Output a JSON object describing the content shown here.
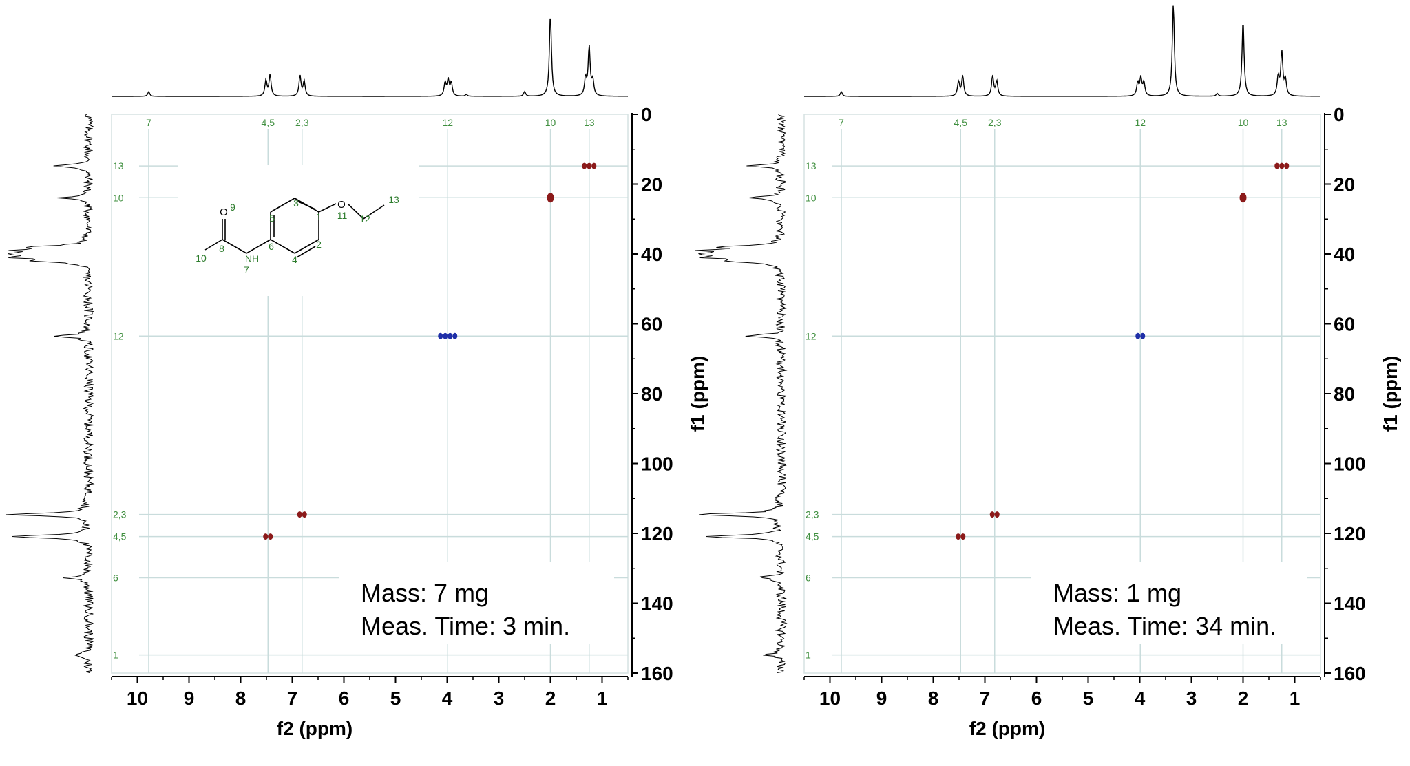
{
  "chart_data": [
    {
      "type": "scatter",
      "description_kind": "2D HSQC NMR spectrum",
      "xlabel": "f2 (ppm)",
      "ylabel": "f1 (ppm)",
      "xlim": [
        10.5,
        0.5
      ],
      "ylim": [
        0,
        160
      ],
      "x_ticks": [
        "10",
        "9",
        "8",
        "7",
        "6",
        "5",
        "4",
        "3",
        "2",
        "1"
      ],
      "y_ticks": [
        "0",
        "20",
        "40",
        "60",
        "80",
        "100",
        "120",
        "140",
        "160"
      ],
      "x_assignments": [
        {
          "label": "7",
          "x": 9.78
        },
        {
          "label": "4,5",
          "x": 7.47
        },
        {
          "label": "2,3",
          "x": 6.81
        },
        {
          "label": "12",
          "x": 3.99
        },
        {
          "label": "10",
          "x": 2.0
        },
        {
          "label": "13",
          "x": 1.25
        }
      ],
      "y_assignments": [
        {
          "label": "13",
          "y": 14.8
        },
        {
          "label": "10",
          "y": 23.9
        },
        {
          "label": "12",
          "y": 63.5
        },
        {
          "label": "2,3",
          "y": 114.6
        },
        {
          "label": "4,5",
          "y": 120.9
        },
        {
          "label": "6",
          "y": 132.7
        },
        {
          "label": "1",
          "y": 154.8
        }
      ],
      "cross_peaks": [
        {
          "x": 1.25,
          "y": 14.8,
          "phase": "positive",
          "count": 3
        },
        {
          "x": 2.0,
          "y": 23.9,
          "phase": "positive",
          "count": 1
        },
        {
          "x": 3.99,
          "y": 63.5,
          "phase": "negative",
          "count": 4
        },
        {
          "x": 6.81,
          "y": 114.6,
          "phase": "positive",
          "count": 2
        },
        {
          "x": 7.47,
          "y": 120.9,
          "phase": "positive",
          "count": 2
        }
      ],
      "proton_1d_peaks": [
        {
          "x": 9.78,
          "h": 0.05
        },
        {
          "x": 7.51,
          "h": 0.17
        },
        {
          "x": 7.43,
          "h": 0.23
        },
        {
          "x": 6.85,
          "h": 0.22
        },
        {
          "x": 6.77,
          "h": 0.16
        },
        {
          "x": 4.04,
          "h": 0.14
        },
        {
          "x": 3.98,
          "h": 0.17
        },
        {
          "x": 3.92,
          "h": 0.14
        },
        {
          "x": 3.63,
          "h": 0.02
        },
        {
          "x": 2.5,
          "h": 0.05
        },
        {
          "x": 2.0,
          "h": 0.9
        },
        {
          "x": 1.32,
          "h": 0.18
        },
        {
          "x": 1.25,
          "h": 0.53
        },
        {
          "x": 1.18,
          "h": 0.16
        }
      ],
      "carbon_1d_peaks": [
        {
          "y": 14.8,
          "h": 0.4
        },
        {
          "y": 23.9,
          "h": 0.34
        },
        {
          "y": 38.0,
          "h": 0.6
        },
        {
          "y": 39.0,
          "h": 0.72
        },
        {
          "y": 40.0,
          "h": 0.78
        },
        {
          "y": 41.0,
          "h": 0.7
        },
        {
          "y": 42.0,
          "h": 0.55
        },
        {
          "y": 63.5,
          "h": 0.4
        },
        {
          "y": 114.6,
          "h": 1.0
        },
        {
          "y": 120.9,
          "h": 0.95
        },
        {
          "y": 132.7,
          "h": 0.28
        },
        {
          "y": 154.8,
          "h": 0.2
        }
      ],
      "annotations": [
        "Mass: 7 mg",
        "Meas. Time: 3 min."
      ],
      "has_structure": true
    },
    {
      "type": "scatter",
      "description_kind": "2D HSQC NMR spectrum",
      "xlabel": "f2 (ppm)",
      "ylabel": "f1 (ppm)",
      "xlim": [
        10.5,
        0.5
      ],
      "ylim": [
        0,
        160
      ],
      "x_ticks": [
        "10",
        "9",
        "8",
        "7",
        "6",
        "5",
        "4",
        "3",
        "2",
        "1"
      ],
      "y_ticks": [
        "0",
        "20",
        "40",
        "60",
        "80",
        "100",
        "120",
        "140",
        "160"
      ],
      "x_assignments": [
        {
          "label": "7",
          "x": 9.78
        },
        {
          "label": "4,5",
          "x": 7.47
        },
        {
          "label": "2,3",
          "x": 6.81
        },
        {
          "label": "12",
          "x": 3.99
        },
        {
          "label": "10",
          "x": 2.0
        },
        {
          "label": "13",
          "x": 1.25
        }
      ],
      "y_assignments": [
        {
          "label": "13",
          "y": 14.8
        },
        {
          "label": "10",
          "y": 23.9
        },
        {
          "label": "12",
          "y": 63.5
        },
        {
          "label": "2,3",
          "y": 114.6
        },
        {
          "label": "4,5",
          "y": 120.9
        },
        {
          "label": "6",
          "y": 132.7
        },
        {
          "label": "1",
          "y": 154.8
        }
      ],
      "cross_peaks": [
        {
          "x": 1.25,
          "y": 14.8,
          "phase": "positive",
          "count": 3
        },
        {
          "x": 2.0,
          "y": 23.9,
          "phase": "positive",
          "count": 1
        },
        {
          "x": 3.99,
          "y": 63.5,
          "phase": "negative",
          "count": 2
        },
        {
          "x": 6.81,
          "y": 114.6,
          "phase": "positive",
          "count": 2
        },
        {
          "x": 7.47,
          "y": 120.9,
          "phase": "positive",
          "count": 2
        }
      ],
      "proton_1d_peaks": [
        {
          "x": 9.78,
          "h": 0.05
        },
        {
          "x": 7.51,
          "h": 0.16
        },
        {
          "x": 7.43,
          "h": 0.22
        },
        {
          "x": 6.85,
          "h": 0.22
        },
        {
          "x": 6.77,
          "h": 0.16
        },
        {
          "x": 4.04,
          "h": 0.14
        },
        {
          "x": 3.98,
          "h": 0.19
        },
        {
          "x": 3.92,
          "h": 0.14
        },
        {
          "x": 3.35,
          "h": 1.0
        },
        {
          "x": 2.5,
          "h": 0.03
        },
        {
          "x": 2.0,
          "h": 0.82
        },
        {
          "x": 1.32,
          "h": 0.2
        },
        {
          "x": 1.25,
          "h": 0.47
        },
        {
          "x": 1.18,
          "h": 0.17
        }
      ],
      "carbon_1d_peaks": [
        {
          "y": 14.8,
          "h": 0.4
        },
        {
          "y": 23.9,
          "h": 0.34
        },
        {
          "y": 38.0,
          "h": 0.6
        },
        {
          "y": 39.0,
          "h": 0.72
        },
        {
          "y": 40.0,
          "h": 0.78
        },
        {
          "y": 41.0,
          "h": 0.7
        },
        {
          "y": 42.0,
          "h": 0.55
        },
        {
          "y": 63.5,
          "h": 0.4
        },
        {
          "y": 114.6,
          "h": 1.0
        },
        {
          "y": 120.9,
          "h": 0.95
        },
        {
          "y": 132.7,
          "h": 0.28
        },
        {
          "y": 154.8,
          "h": 0.2
        }
      ],
      "annotations": [
        "Mass: 1 mg",
        "Meas. Time: 34 min."
      ],
      "has_structure": false
    }
  ],
  "structure": {
    "atoms": [
      "O",
      "NH",
      "O"
    ],
    "labels": [
      "9",
      "8",
      "10",
      "7",
      "6",
      "5",
      "4",
      "3",
      "2",
      "1",
      "11",
      "12",
      "13"
    ]
  },
  "colors": {
    "positive_peak": "#8b1a1a",
    "negative_peak": "#1f2fa8",
    "assignment_text": "#3f8f3f",
    "guide_line": "#c9dcdc"
  }
}
